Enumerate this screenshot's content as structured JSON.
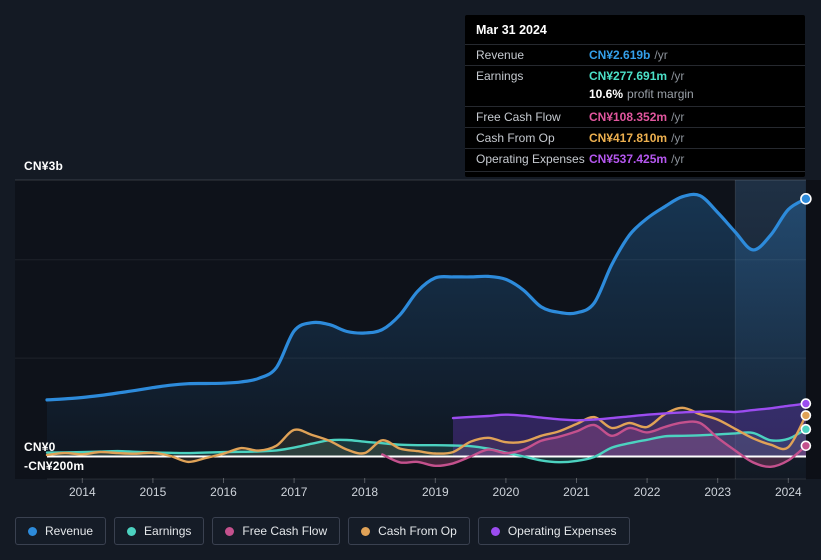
{
  "page": {
    "background": "#141a24"
  },
  "y_axis": {
    "labels": [
      {
        "id": "top",
        "text": "CN¥3b",
        "value_m": 3000
      },
      {
        "id": "zero",
        "text": "CN¥0",
        "value_m": 0
      },
      {
        "id": "neg",
        "text": "-CN¥200m",
        "value_m": -200
      }
    ]
  },
  "x_axis": {
    "years": [
      "2014",
      "2015",
      "2016",
      "2017",
      "2018",
      "2019",
      "2020",
      "2021",
      "2022",
      "2023",
      "2024"
    ]
  },
  "tooltip": {
    "date": "Mar 31 2024",
    "rows": [
      {
        "label": "Revenue",
        "value": "CN¥2.619b",
        "unit": "/yr",
        "color": "#34a0ea"
      },
      {
        "label": "Earnings",
        "value": "CN¥277.691m",
        "unit": "/yr",
        "color": "#4be0c8",
        "sub_value": "10.6%",
        "sub_text": "profit margin"
      },
      {
        "label": "Free Cash Flow",
        "value": "CN¥108.352m",
        "unit": "/yr",
        "color": "#e1569e"
      },
      {
        "label": "Cash From Op",
        "value": "CN¥417.810m",
        "unit": "/yr",
        "color": "#edb04f"
      },
      {
        "label": "Operating Expenses",
        "value": "CN¥537.425m",
        "unit": "/yr",
        "color": "#b557ef"
      }
    ]
  },
  "legend": {
    "items": [
      {
        "label": "Revenue",
        "color": "#2d8bdb"
      },
      {
        "label": "Earnings",
        "color": "#4cd2c0"
      },
      {
        "label": "Free Cash Flow",
        "color": "#c4518d"
      },
      {
        "label": "Cash From Op",
        "color": "#e0a257"
      },
      {
        "label": "Operating Expenses",
        "color": "#9b4cf0"
      }
    ]
  },
  "chart_data": {
    "type": "area",
    "unit": "CN¥ millions per year",
    "x_range": [
      2013.5,
      2024.25
    ],
    "ylim_m": [
      -230,
      2810
    ],
    "gridlines_m": [
      1000,
      2000
    ],
    "zero_line_m": 0,
    "highlight_band_years": [
      2023.25,
      2024.25
    ],
    "legend_position": "bottom",
    "series": [
      {
        "name": "Revenue",
        "color": "#2d8bdb",
        "fill": "gradient-blue",
        "line_width": 3.2,
        "x_start": 2013.5,
        "step": 0.25,
        "values": [
          575,
          585,
          600,
          620,
          645,
          672,
          700,
          725,
          740,
          742,
          745,
          758,
          795,
          905,
          1275,
          1360,
          1340,
          1270,
          1255,
          1290,
          1440,
          1680,
          1815,
          1825,
          1825,
          1830,
          1800,
          1690,
          1520,
          1465,
          1460,
          1560,
          1950,
          2250,
          2420,
          2540,
          2640,
          2650,
          2480,
          2280,
          2100,
          2250,
          2510,
          2619
        ]
      },
      {
        "name": "Earnings",
        "color": "#4cd2c0",
        "fill": "rgba(79,212,192,0.16)",
        "line_width": 2.4,
        "x_start": 2013.5,
        "step": 0.25,
        "values": [
          40,
          42,
          45,
          50,
          55,
          48,
          42,
          38,
          35,
          40,
          45,
          48,
          52,
          62,
          90,
          130,
          165,
          168,
          150,
          135,
          120,
          115,
          115,
          112,
          105,
          80,
          40,
          0,
          -40,
          -58,
          -45,
          -5,
          90,
          135,
          170,
          205,
          210,
          215,
          225,
          235,
          240,
          165,
          180,
          277.7
        ]
      },
      {
        "name": "Free Cash Flow",
        "color": "#c4518d",
        "fill": "rgba(196,81,141,0.28)",
        "line_width": 2.4,
        "x_start": 2018.25,
        "step": 0.25,
        "values": [
          20,
          -60,
          -55,
          -95,
          -70,
          0,
          70,
          35,
          70,
          160,
          200,
          255,
          320,
          210,
          290,
          245,
          300,
          345,
          340,
          190,
          60,
          -60,
          -105,
          -40,
          108.4
        ]
      },
      {
        "name": "Cash From Op",
        "color": "#e0a257",
        "fill": "rgba(224,162,87,0.10)",
        "line_width": 2.4,
        "x_start": 2013.5,
        "step": 0.25,
        "values": [
          15,
          35,
          22,
          45,
          35,
          28,
          38,
          5,
          -55,
          -15,
          28,
          85,
          60,
          110,
          270,
          220,
          160,
          70,
          35,
          165,
          80,
          55,
          30,
          45,
          150,
          190,
          145,
          150,
          210,
          255,
          330,
          400,
          290,
          340,
          300,
          430,
          495,
          430,
          375,
          280,
          185,
          120,
          95,
          417.8
        ]
      },
      {
        "name": "Operating Expenses",
        "color": "#9b4cf0",
        "fill": "rgba(110,60,195,0.34)",
        "line_width": 2.4,
        "x_start": 2019.25,
        "step": 0.25,
        "values": [
          390,
          402,
          412,
          425,
          415,
          395,
          378,
          368,
          375,
          390,
          408,
          425,
          438,
          448,
          455,
          460,
          452,
          472,
          490,
          515,
          537.4
        ]
      }
    ]
  }
}
